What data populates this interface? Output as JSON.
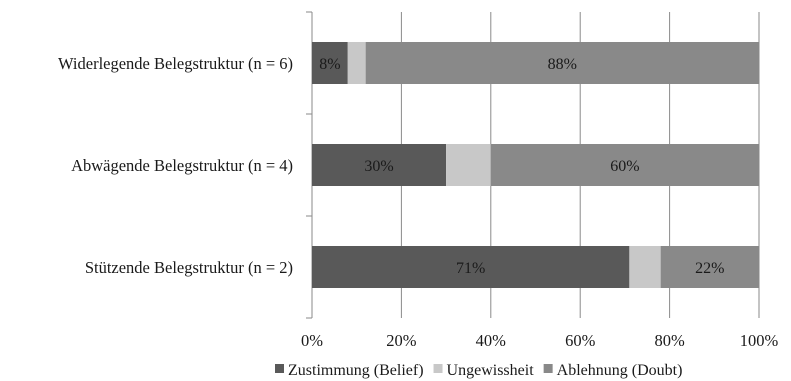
{
  "chart_data": {
    "type": "bar",
    "orientation": "horizontal",
    "stacked": "percent",
    "categories": [
      "Widerlegende Belegstruktur (n = 6)",
      "Abwägende Belegstruktur (n = 4)",
      "Stützende Belegstruktur (n = 2)"
    ],
    "series": [
      {
        "name": "Zustimmung (Belief)",
        "color": "#595959",
        "values": [
          8,
          30,
          71
        ],
        "labels": [
          "8%",
          "30%",
          "71%"
        ]
      },
      {
        "name": "Ungewissheit",
        "color": "#c8c8c8",
        "values": [
          4,
          10,
          7
        ],
        "labels": [
          "",
          "",
          ""
        ]
      },
      {
        "name": "Ablehnung (Doubt)",
        "color": "#898989",
        "values": [
          88,
          60,
          22
        ],
        "labels": [
          "88%",
          "60%",
          "22%"
        ]
      }
    ],
    "xlim": [
      0,
      100
    ],
    "xticks": [
      "0%",
      "20%",
      "40%",
      "60%",
      "80%",
      "100%"
    ],
    "grid": "vertical",
    "legend": "bottom",
    "title": "",
    "xlabel": "",
    "ylabel": ""
  }
}
